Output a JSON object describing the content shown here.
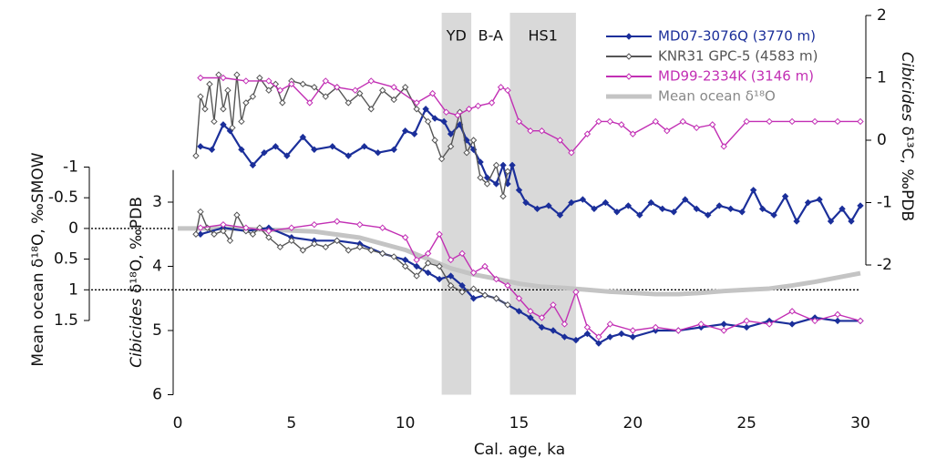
{
  "chart_data": {
    "type": "line",
    "xlabel": "Cal. age, ka",
    "xlim": [
      0,
      30
    ],
    "xticks": [
      0,
      5,
      10,
      15,
      20,
      25,
      30
    ],
    "ylabel": {
      "species": "Cibicides",
      "text": "δ¹⁸O, ‰PDB"
    },
    "ylim": [
      6,
      2.5
    ],
    "yticks": [
      3,
      4,
      5,
      6
    ],
    "y2label": {
      "species": "Cibicides",
      "text": "δ¹³C, ‰PDB"
    },
    "y2lim": [
      -2,
      2
    ],
    "y2ticks": [
      -2,
      -1,
      0,
      1,
      2
    ],
    "y3label": "Mean ocean δ¹⁸O, ‰SMOW",
    "y3lim": [
      -1,
      1.5
    ],
    "y3ticks": [
      -1,
      -0.5,
      0,
      0.5,
      1,
      1.5
    ],
    "dotted_y3": [
      0,
      1
    ],
    "periods": [
      {
        "label": "YD",
        "x": [
          11.6,
          12.9
        ],
        "shaded": true
      },
      {
        "label": "B-A",
        "x": [
          12.9,
          14.6
        ],
        "shaded": false
      },
      {
        "label": "HS1",
        "x": [
          14.6,
          17.5
        ],
        "shaded": true
      }
    ],
    "legend": "upper right",
    "series": [
      {
        "name": "MD07-3076Q (3770 m)",
        "color": "#1b2f9a",
        "marker": "filled",
        "d13C": {
          "axis": "y2",
          "x": [
            1,
            1.5,
            2,
            2.3,
            2.8,
            3.3,
            3.8,
            4.3,
            4.8,
            5.5,
            6,
            6.8,
            7.5,
            8.2,
            8.8,
            9.5,
            10,
            10.4,
            10.9,
            11.3,
            11.7,
            12,
            12.4,
            12.7,
            13,
            13.3,
            13.6,
            14,
            14.3,
            14.5,
            14.7,
            15,
            15.3,
            15.8,
            16.3,
            16.8,
            17.3,
            17.8,
            18.3,
            18.8,
            19.3,
            19.8,
            20.3,
            20.8,
            21.3,
            21.8,
            22.3,
            22.8,
            23.3,
            23.8,
            24.3,
            24.8,
            25.3,
            25.7,
            26.2,
            26.7,
            27.2,
            27.7,
            28.2,
            28.7,
            29.2,
            29.6,
            30
          ],
          "values": [
            -0.1,
            -0.15,
            0.25,
            0.15,
            -0.15,
            -0.4,
            -0.2,
            -0.1,
            -0.25,
            0.05,
            -0.15,
            -0.1,
            -0.25,
            -0.1,
            -0.2,
            -0.15,
            0.15,
            0.1,
            0.5,
            0.35,
            0.3,
            0.1,
            0.25,
            0,
            -0.15,
            -0.35,
            -0.6,
            -0.7,
            -0.4,
            -0.7,
            -0.4,
            -0.8,
            -1,
            -1.1,
            -1.05,
            -1.2,
            -1,
            -0.95,
            -1.1,
            -1,
            -1.15,
            -1.05,
            -1.2,
            -1,
            -1.1,
            -1.15,
            -0.95,
            -1.1,
            -1.2,
            -1.05,
            -1.1,
            -1.15,
            -0.8,
            -1.1,
            -1.2,
            -0.9,
            -1.3,
            -1,
            -0.95,
            -1.3,
            -1.1,
            -1.3,
            -1.05
          ]
        },
        "d18O": {
          "axis": "y",
          "x": [
            1,
            2,
            3,
            4,
            5,
            6,
            7,
            8,
            9,
            10,
            10.5,
            11,
            11.5,
            12,
            12.5,
            13,
            13.5,
            14,
            14.5,
            15,
            15.5,
            16,
            16.5,
            17,
            17.5,
            18,
            18.5,
            19,
            19.5,
            20,
            21,
            22,
            23,
            24,
            25,
            26,
            27,
            28,
            29,
            30
          ],
          "values": [
            3.5,
            3.4,
            3.45,
            3.4,
            3.55,
            3.6,
            3.6,
            3.65,
            3.8,
            3.9,
            4,
            4.1,
            4.2,
            4.15,
            4.3,
            4.5,
            4.45,
            4.5,
            4.6,
            4.7,
            4.8,
            4.95,
            5,
            5.1,
            5.15,
            5.05,
            5.2,
            5.1,
            5.05,
            5.1,
            5,
            5,
            4.95,
            4.9,
            4.95,
            4.85,
            4.9,
            4.8,
            4.85,
            4.85
          ]
        }
      },
      {
        "name": "KNR31 GPC-5 (4583 m)",
        "color": "#555555",
        "marker": "open",
        "d13C": {
          "axis": "y2",
          "x": [
            0.8,
            1,
            1.2,
            1.4,
            1.6,
            1.8,
            2,
            2.2,
            2.4,
            2.6,
            2.8,
            3,
            3.3,
            3.6,
            4,
            4.3,
            4.6,
            5,
            5.5,
            6,
            6.5,
            7,
            7.5,
            8,
            8.5,
            9,
            9.5,
            10,
            10.5,
            11,
            11.3,
            11.6,
            12,
            12.4,
            12.7,
            13,
            13.3,
            13.6,
            14,
            14.3,
            14.5
          ],
          "values": [
            -0.25,
            0.7,
            0.5,
            0.9,
            0.3,
            1.05,
            0.5,
            0.8,
            0.2,
            1.05,
            0.3,
            0.6,
            0.7,
            1,
            0.8,
            0.9,
            0.6,
            0.95,
            0.9,
            0.85,
            0.7,
            0.85,
            0.6,
            0.75,
            0.5,
            0.8,
            0.65,
            0.85,
            0.5,
            0.3,
            0,
            -0.3,
            -0.1,
            0.45,
            -0.2,
            0,
            -0.6,
            -0.7,
            -0.4,
            -0.9,
            -0.5
          ]
        },
        "d18O": {
          "axis": "y",
          "x": [
            0.8,
            1,
            1.3,
            1.6,
            2,
            2.3,
            2.6,
            3,
            3.3,
            3.6,
            4,
            4.5,
            5,
            5.5,
            6,
            6.5,
            7,
            7.5,
            8,
            8.5,
            9,
            9.5,
            10,
            10.5,
            11,
            11.5,
            12,
            12.5,
            13,
            13.5,
            14,
            14.5
          ],
          "values": [
            3.5,
            3.15,
            3.4,
            3.5,
            3.45,
            3.6,
            3.2,
            3.45,
            3.5,
            3.4,
            3.55,
            3.7,
            3.6,
            3.75,
            3.65,
            3.7,
            3.6,
            3.75,
            3.7,
            3.75,
            3.8,
            3.85,
            4,
            4.15,
            3.95,
            4,
            4.3,
            4.4,
            4.35,
            4.45,
            4.5,
            4.6
          ]
        }
      },
      {
        "name": "MD99-2334K (3146 m)",
        "color": "#c22fb4",
        "marker": "open",
        "d13C": {
          "axis": "y2",
          "x": [
            1,
            2,
            3,
            4,
            4.5,
            5,
            5.8,
            6.5,
            7,
            7.8,
            8.5,
            9.5,
            10.5,
            11.2,
            11.8,
            12.3,
            12.8,
            13.2,
            13.8,
            14.2,
            14.5,
            15,
            15.5,
            16,
            16.8,
            17.3,
            18,
            18.5,
            19,
            19.5,
            20,
            21,
            21.5,
            22.2,
            22.8,
            23.5,
            24,
            25,
            26,
            27,
            28,
            29,
            30
          ],
          "values": [
            1,
            1,
            0.95,
            0.95,
            0.8,
            0.9,
            0.6,
            0.95,
            0.85,
            0.8,
            0.95,
            0.85,
            0.6,
            0.75,
            0.45,
            0.4,
            0.5,
            0.55,
            0.6,
            0.85,
            0.8,
            0.3,
            0.15,
            0.15,
            0,
            -0.2,
            0.1,
            0.3,
            0.3,
            0.25,
            0.1,
            0.3,
            0.15,
            0.3,
            0.2,
            0.25,
            -0.1,
            0.3,
            0.3,
            0.3,
            0.3,
            0.3,
            0.3
          ]
        },
        "d18O": {
          "axis": "y",
          "x": [
            1,
            2,
            3,
            4,
            5,
            6,
            7,
            8,
            9,
            10,
            10.5,
            11,
            11.5,
            12,
            12.5,
            13,
            13.5,
            14,
            14.5,
            15,
            15.5,
            16,
            16.5,
            17,
            17.5,
            18,
            18.5,
            19,
            20,
            21,
            22,
            23,
            24,
            25,
            26,
            27,
            28,
            29,
            30
          ],
          "values": [
            3.4,
            3.35,
            3.4,
            3.45,
            3.4,
            3.35,
            3.3,
            3.35,
            3.4,
            3.55,
            3.9,
            3.8,
            3.5,
            3.9,
            3.8,
            4.1,
            4,
            4.2,
            4.3,
            4.5,
            4.7,
            4.8,
            4.6,
            4.9,
            4.4,
            4.95,
            5.1,
            4.9,
            5,
            4.95,
            5,
            4.9,
            5,
            4.85,
            4.9,
            4.7,
            4.85,
            4.75,
            4.85
          ]
        }
      },
      {
        "name": "Mean ocean δ¹⁸O",
        "color": "#c4c4c4",
        "axis": "y3",
        "x": [
          0,
          2,
          4,
          6,
          7,
          8,
          9,
          10,
          11,
          12,
          13,
          14,
          15,
          16,
          17,
          18,
          19,
          20,
          21,
          22,
          23,
          24,
          25,
          26,
          27,
          28,
          29,
          30
        ],
        "values": [
          0,
          0,
          0.02,
          0.05,
          0.1,
          0.15,
          0.25,
          0.35,
          0.5,
          0.65,
          0.75,
          0.82,
          0.9,
          0.95,
          0.97,
          1,
          1.03,
          1.05,
          1.07,
          1.07,
          1.05,
          1.02,
          1,
          0.98,
          0.93,
          0.87,
          0.8,
          0.73
        ]
      }
    ]
  }
}
